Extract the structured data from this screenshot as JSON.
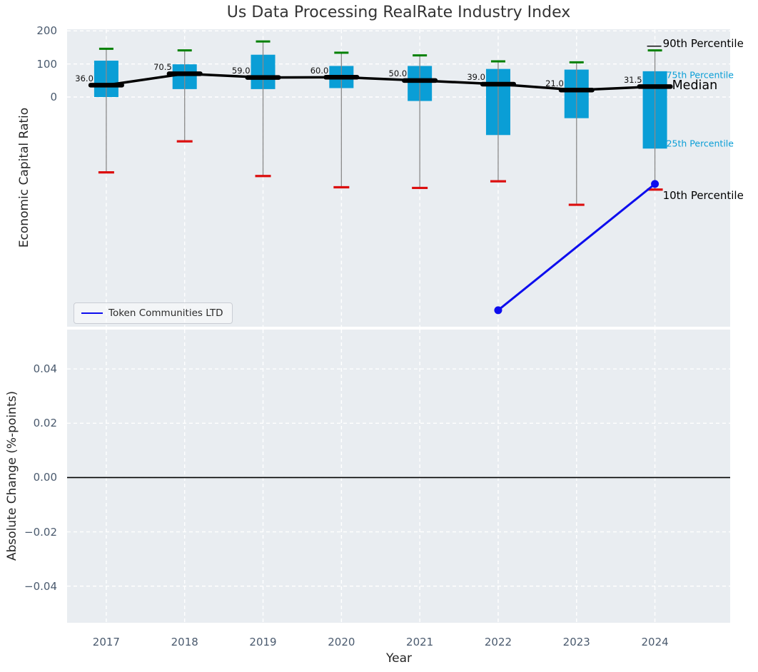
{
  "title": "Us Data Processing RealRate Industry Index",
  "legend": {
    "label": "Token Communities LTD"
  },
  "colors": {
    "box_fill": "#0a9ed6",
    "median": "#000000",
    "p90_cap": "#008000",
    "p10_cap": "#dc0f0f",
    "whisker": "#8a8a8a",
    "company_line": "#0d0dee",
    "panel_bg": "#e9edf1",
    "grid": "#ffffff",
    "tick_label": "#4a5a6e",
    "axis_label": "#262626",
    "annotation_cyan": "#0a9ed6",
    "annotation_black": "#000000",
    "zero_line": "#000000"
  },
  "chart_data": [
    {
      "type": "boxplot",
      "title": "Us Data Processing RealRate Industry Index",
      "ylabel": "Economic Capital Ratio",
      "xlabel": "",
      "ylim": [
        -695,
        204
      ],
      "xlim": [
        2016.5,
        2024.96
      ],
      "grid": true,
      "legend_position": "lower left",
      "yticks": [
        {
          "value": 200,
          "label": "200"
        },
        {
          "value": 100,
          "label": "100"
        },
        {
          "value": 0,
          "label": "0"
        }
      ],
      "categories": [
        2017,
        2018,
        2019,
        2020,
        2021,
        2022,
        2023,
        2024
      ],
      "boxes": [
        {
          "year": 2017,
          "p10": -228,
          "p25": 0,
          "median": 36.0,
          "median_label": "36.0",
          "p75": 110,
          "p90": 146
        },
        {
          "year": 2018,
          "p10": -134,
          "p25": 24,
          "median": 70.5,
          "median_label": "70.5",
          "p75": 99,
          "p90": 141
        },
        {
          "year": 2019,
          "p10": -239,
          "p25": 24,
          "median": 59.0,
          "median_label": "59.0",
          "p75": 128,
          "p90": 168
        },
        {
          "year": 2020,
          "p10": -273,
          "p25": 27,
          "median": 60.0,
          "median_label": "60.0",
          "p75": 94,
          "p90": 134
        },
        {
          "year": 2021,
          "p10": -275,
          "p25": -12,
          "median": 50.0,
          "median_label": "50.0",
          "p75": 94,
          "p90": 126
        },
        {
          "year": 2022,
          "p10": -255,
          "p25": -115,
          "median": 39.0,
          "median_label": "39.0",
          "p75": 85,
          "p90": 108
        },
        {
          "year": 2023,
          "p10": -326,
          "p25": -64,
          "median": 21.0,
          "median_label": "21.0",
          "p75": 83,
          "p90": 105
        },
        {
          "year": 2024,
          "p10": -280,
          "p25": -156,
          "median": 31.5,
          "median_label": "31.5",
          "p75": 78,
          "p90": 141
        }
      ],
      "median_line_connects": true,
      "series": [
        {
          "name": "Token Communities LTD",
          "type": "line",
          "points": [
            {
              "x": 2022,
              "y": -645
            },
            {
              "x": 2024,
              "y": -263
            }
          ]
        }
      ],
      "annotations": [
        {
          "text": "90th Percentile",
          "anchor": "p90",
          "style": "black-large",
          "leader_line": true
        },
        {
          "text": "75th Percentile",
          "anchor": "p75",
          "style": "cyan-small",
          "leader_line": false
        },
        {
          "text": "Median",
          "anchor": "median",
          "style": "black-xlarge",
          "leader_line": false
        },
        {
          "text": "25th Percentile",
          "anchor": "p25",
          "style": "cyan-small",
          "leader_line": false
        },
        {
          "text": "10th Percentile",
          "anchor": "p10",
          "style": "black-large",
          "leader_line": false
        }
      ]
    },
    {
      "type": "line",
      "ylabel": "Absolute Change (%-points)",
      "xlabel": "Year",
      "ylim": [
        -0.0535,
        0.0545
      ],
      "xlim": [
        2016.5,
        2024.96
      ],
      "grid": true,
      "zero_line": true,
      "series": [],
      "yticks": [
        {
          "value": 0.04,
          "label": "0.04"
        },
        {
          "value": 0.02,
          "label": "0.02"
        },
        {
          "value": 0.0,
          "label": "0.00"
        },
        {
          "value": -0.02,
          "label": "−0.02"
        },
        {
          "value": -0.04,
          "label": "−0.04"
        }
      ],
      "xticks": [
        {
          "value": 2017,
          "label": "2017"
        },
        {
          "value": 2018,
          "label": "2018"
        },
        {
          "value": 2019,
          "label": "2019"
        },
        {
          "value": 2020,
          "label": "2020"
        },
        {
          "value": 2021,
          "label": "2021"
        },
        {
          "value": 2022,
          "label": "2022"
        },
        {
          "value": 2023,
          "label": "2023"
        },
        {
          "value": 2024,
          "label": "2024"
        }
      ]
    }
  ]
}
